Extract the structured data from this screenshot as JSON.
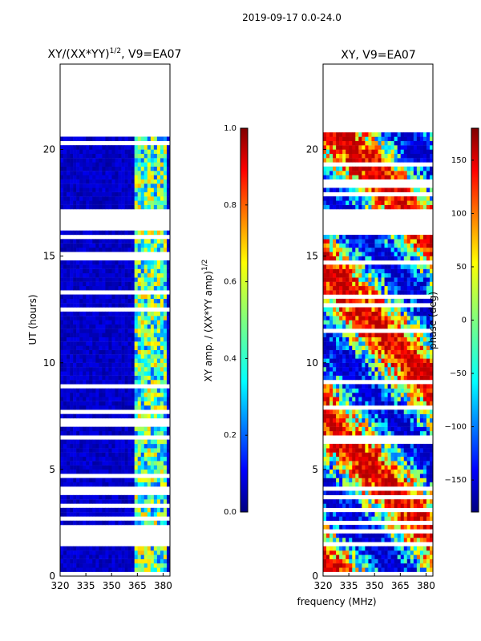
{
  "suptitle": "2019-09-17 0.0-24.0",
  "xlabel_shared": "frequency (MHz)",
  "chart_data": [
    {
      "type": "heatmap",
      "title": "XY/(XX*YY)",
      "title_sup": "1/2",
      "title_suffix": ", V9=EA07",
      "ylabel": "UT (hours)",
      "xlim": [
        320,
        384
      ],
      "ylim": [
        0,
        24
      ],
      "x_ticks": [
        320,
        335,
        350,
        365,
        380
      ],
      "y_ticks": [
        0,
        5,
        10,
        15,
        20
      ],
      "coverage_hours": [
        0,
        20.8
      ],
      "gap_bands_hours": [
        [
          16.2,
          17.2
        ],
        [
          20.8,
          24
        ]
      ],
      "hot_channel_band_mhz": [
        362,
        382
      ],
      "colorbar": {
        "label": "XY amp. / (XX*YY amp)",
        "label_sup": "1/2",
        "range": [
          0,
          1
        ],
        "ticks": [
          "0.0",
          "0.2",
          "0.4",
          "0.6",
          "0.8",
          "1.0"
        ],
        "colormap": "jet"
      }
    },
    {
      "type": "heatmap",
      "title": "XY, V9=EA07",
      "xlim": [
        320,
        384
      ],
      "ylim": [
        0,
        24
      ],
      "x_ticks": [
        320,
        335,
        350,
        365,
        380
      ],
      "y_ticks": [
        0,
        5,
        10,
        15,
        20
      ],
      "coverage_hours": [
        0,
        20.8
      ],
      "gap_bands_hours": [
        [
          16.2,
          17.2
        ],
        [
          20.8,
          24
        ]
      ],
      "colorbar": {
        "label": "phase (deg)",
        "range": [
          -180,
          180
        ],
        "ticks": [
          "150",
          "100",
          "50",
          "0",
          "−50",
          "−100",
          "−150"
        ],
        "tick_values": [
          150,
          100,
          50,
          0,
          -50,
          -100,
          -150
        ],
        "colormap": "jet"
      }
    }
  ],
  "colors": {
    "jet": [
      "#00007f",
      "#0000ff",
      "#007fff",
      "#00ffff",
      "#7fff7f",
      "#ffff00",
      "#ff7f00",
      "#ff0000",
      "#7f0000"
    ]
  }
}
